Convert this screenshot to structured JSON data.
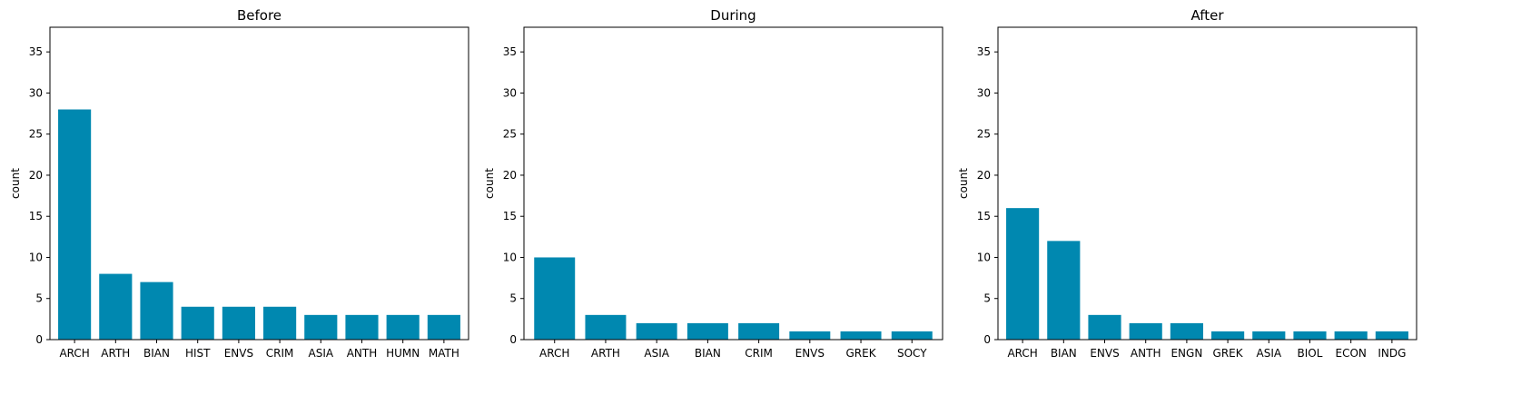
{
  "style": {
    "bar_color": "#0088b0",
    "background": "#ffffff",
    "axis_color": "#000000"
  },
  "chart_data": [
    {
      "type": "bar",
      "title": "Before",
      "xlabel": "",
      "ylabel": "count",
      "ylim": [
        0,
        38
      ],
      "yticks": [
        0,
        5,
        10,
        15,
        20,
        25,
        30,
        35
      ],
      "grid": false,
      "categories": [
        "ARCH",
        "ARTH",
        "BIAN",
        "HIST",
        "ENVS",
        "CRIM",
        "ASIA",
        "ANTH",
        "HUMN",
        "MATH"
      ],
      "values": [
        28,
        8,
        7,
        4,
        4,
        4,
        3,
        3,
        3,
        3
      ]
    },
    {
      "type": "bar",
      "title": "During",
      "xlabel": "",
      "ylabel": "count",
      "ylim": [
        0,
        38
      ],
      "yticks": [
        0,
        5,
        10,
        15,
        20,
        25,
        30,
        35
      ],
      "grid": false,
      "categories": [
        "ARCH",
        "ARTH",
        "ASIA",
        "BIAN",
        "CRIM",
        "ENVS",
        "GREK",
        "SOCY"
      ],
      "values": [
        10,
        3,
        2,
        2,
        2,
        1,
        1,
        1
      ]
    },
    {
      "type": "bar",
      "title": "After",
      "xlabel": "",
      "ylabel": "count",
      "ylim": [
        0,
        38
      ],
      "yticks": [
        0,
        5,
        10,
        15,
        20,
        25,
        30,
        35
      ],
      "grid": false,
      "categories": [
        "ARCH",
        "BIAN",
        "ENVS",
        "ANTH",
        "ENGN",
        "GREK",
        "ASIA",
        "BIOL",
        "ECON",
        "INDG"
      ],
      "values": [
        16,
        12,
        3,
        2,
        2,
        1,
        1,
        1,
        1,
        1
      ]
    }
  ]
}
